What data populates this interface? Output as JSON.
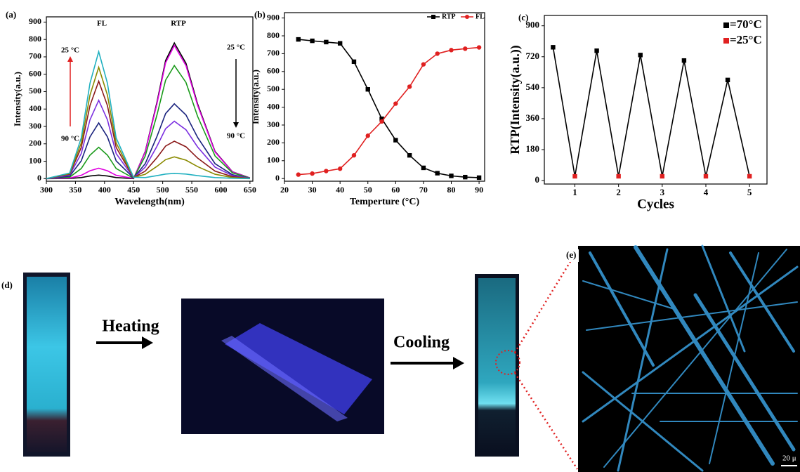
{
  "chart_data": [
    {
      "type": "line",
      "title": "(a)",
      "x_label": "Wavelength(nm)",
      "y_label": "Intensity(a.u.)",
      "annotations": [
        "FL",
        "RTP",
        "25 °C",
        "90 °C",
        "25 °C",
        "90 °C"
      ],
      "x": [
        300,
        340,
        360,
        375,
        390,
        405,
        420,
        450,
        470,
        490,
        505,
        520,
        540,
        560,
        590,
        620,
        650
      ],
      "series": [
        {
          "color": "#000000",
          "values": [
            0,
            1,
            6,
            15,
            20,
            15,
            6,
            0,
            156,
            437,
            679,
            780,
            663,
            429,
            156,
            39,
            4
          ]
        },
        {
          "color": "#e000e0",
          "values": [
            0,
            3,
            19,
            45,
            60,
            45,
            19,
            1,
            153,
            428,
            666,
            765,
            650,
            421,
            153,
            38,
            4
          ]
        },
        {
          "color": "#1a9a1a",
          "values": [
            0,
            8,
            58,
            135,
            180,
            135,
            58,
            2,
            130,
            364,
            566,
            650,
            553,
            358,
            130,
            33,
            3
          ]
        },
        {
          "color": "#1a237e",
          "values": [
            0,
            14,
            102,
            240,
            320,
            240,
            102,
            4,
            86,
            241,
            374,
            430,
            366,
            237,
            86,
            22,
            2
          ]
        },
        {
          "color": "#7b2fe0",
          "values": [
            0,
            20,
            144,
            338,
            450,
            338,
            144,
            5,
            66,
            185,
            287,
            330,
            281,
            182,
            66,
            17,
            2
          ]
        },
        {
          "color": "#8b1a1a",
          "values": [
            0,
            25,
            179,
            420,
            560,
            420,
            179,
            6,
            43,
            120,
            187,
            215,
            183,
            118,
            43,
            11,
            1
          ]
        },
        {
          "color": "#8a8a00",
          "values": [
            0,
            28,
            205,
            480,
            640,
            480,
            205,
            7,
            25,
            70,
            109,
            125,
            106,
            69,
            25,
            6,
            1
          ]
        },
        {
          "color": "#20b0c0",
          "values": [
            0,
            32,
            234,
            548,
            730,
            548,
            234,
            8,
            6,
            17,
            26,
            30,
            26,
            17,
            6,
            2,
            0
          ]
        }
      ],
      "xlim": [
        300,
        655
      ],
      "xticks": [
        300,
        350,
        400,
        450,
        500,
        550,
        600,
        650
      ],
      "ylim": [
        -15,
        930
      ],
      "yticks": [
        0,
        100,
        200,
        300,
        400,
        500,
        600,
        700,
        800,
        900
      ]
    },
    {
      "type": "line",
      "title": "(b)",
      "x_label": "Temperture (°C)",
      "y_label": "Intensity(a.u.)",
      "x": [
        25,
        30,
        35,
        40,
        45,
        50,
        55,
        60,
        65,
        70,
        75,
        80,
        85,
        90
      ],
      "series": [
        {
          "name": "RTP",
          "color": "#000000",
          "marker": "square",
          "values": [
            780,
            772,
            765,
            758,
            655,
            500,
            335,
            215,
            130,
            60,
            30,
            15,
            8,
            5
          ]
        },
        {
          "name": "FL",
          "color": "#e02020",
          "marker": "circle",
          "values": [
            22,
            28,
            42,
            55,
            130,
            240,
            320,
            420,
            515,
            640,
            700,
            720,
            728,
            735
          ]
        }
      ],
      "xlim": [
        20,
        92
      ],
      "xticks": [
        20,
        30,
        40,
        50,
        60,
        70,
        80,
        90
      ],
      "ylim": [
        -15,
        930
      ],
      "yticks": [
        0,
        100,
        200,
        300,
        400,
        500,
        600,
        700,
        800,
        900
      ]
    },
    {
      "type": "line",
      "title": "(c)",
      "x_label": "Cycles",
      "y_label": "RTP(Intensity(a.u.))",
      "x": [
        0.5,
        1,
        1.5,
        2,
        2.5,
        3,
        3.5,
        4,
        4.5,
        5
      ],
      "series": [
        {
          "color": "#000000",
          "marker": "square",
          "marker_colors": [
            "#000000",
            "#e02020",
            "#000000",
            "#e02020",
            "#000000",
            "#e02020",
            "#000000",
            "#e02020",
            "#000000",
            "#e02020"
          ],
          "values": [
            775,
            25,
            755,
            25,
            730,
            25,
            698,
            25,
            585,
            25
          ]
        }
      ],
      "legend": [
        {
          "label": "=70°C",
          "color": "#000000"
        },
        {
          "label": "=25°C",
          "color": "#e02020"
        }
      ],
      "xlim": [
        0.3,
        5.4
      ],
      "xticks": [
        1,
        2,
        3,
        4,
        5
      ],
      "ylim": [
        -20,
        960
      ],
      "yticks": [
        0,
        180,
        360,
        540,
        720,
        900
      ]
    }
  ],
  "panels": {
    "d": "(d)",
    "e": "(e)",
    "heating": "Heating",
    "cooling": "Cooling",
    "scale": "20 μ"
  }
}
